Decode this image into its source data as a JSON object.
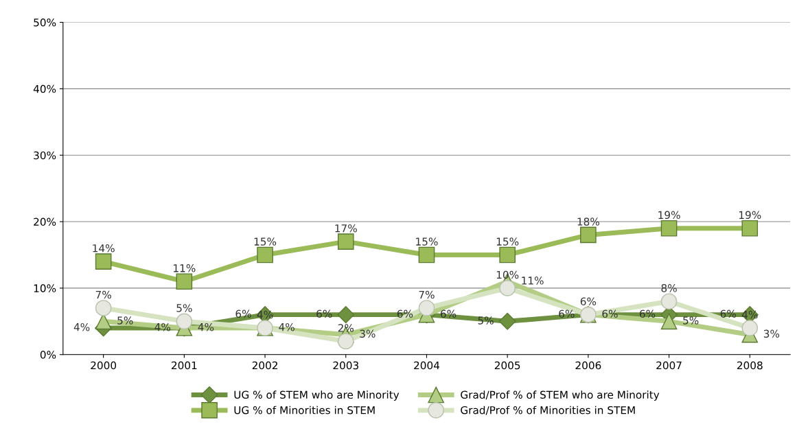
{
  "chart_data": {
    "type": "line",
    "categories": [
      "2000",
      "2001",
      "2002",
      "2003",
      "2004",
      "2005",
      "2006",
      "2007",
      "2008"
    ],
    "series": [
      {
        "name": "UG % of STEM who are Minority",
        "color": "#6e9140",
        "marker": "diamond",
        "values": [
          4,
          4,
          6,
          6,
          6,
          5,
          6,
          6,
          6
        ],
        "value_labels": [
          "4%",
          "4%",
          "6%",
          "6%",
          "6%",
          "5%",
          "6%",
          "6%",
          "6%"
        ]
      },
      {
        "name": "UG % of Minorities in STEM",
        "color": "#9bbb59",
        "marker": "square",
        "values": [
          14,
          11,
          15,
          17,
          15,
          15,
          18,
          19,
          19
        ],
        "value_labels": [
          "14%",
          "11%",
          "15%",
          "17%",
          "15%",
          "15%",
          "18%",
          "19%",
          "19%"
        ]
      },
      {
        "name": "Grad/Prof % of STEM who are Minority",
        "color": "#b3cd85",
        "marker": "triangle",
        "values": [
          5,
          4,
          4,
          3,
          6,
          11,
          6,
          5,
          3
        ],
        "value_labels": [
          "5%",
          "4%",
          "4%",
          "3%",
          "6%",
          "11%",
          "6%",
          "5%",
          "3%"
        ]
      },
      {
        "name": "Grad/Prof % of Minorities in STEM",
        "color": "#d5e3c0",
        "marker": "circle",
        "values": [
          7,
          5,
          4,
          2,
          7,
          10,
          6,
          8,
          4
        ],
        "value_labels": [
          "7%",
          "5%",
          "4%",
          "2%",
          "7%",
          "10%",
          "6%",
          "8%",
          "4%"
        ]
      }
    ],
    "ylim": [
      0,
      50
    ],
    "yticks": [
      {
        "value": 0,
        "label": "0%"
      },
      {
        "value": 10,
        "label": "10%"
      },
      {
        "value": 20,
        "label": "20%"
      },
      {
        "value": 30,
        "label": "30%"
      },
      {
        "value": 40,
        "label": "40%"
      },
      {
        "value": 50,
        "label": "50%"
      }
    ],
    "grid": "y",
    "legend": "bottom",
    "line_style": "solid"
  }
}
